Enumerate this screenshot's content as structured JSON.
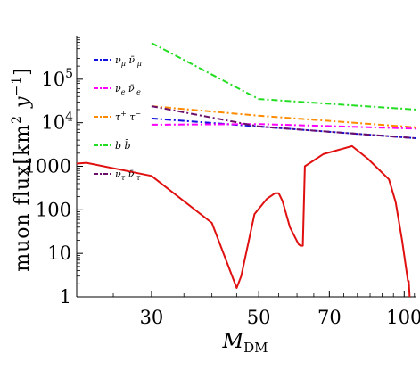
{
  "chart_data": {
    "type": "line",
    "title": "",
    "xlabel": {
      "main": "M",
      "sub": "DM"
    },
    "ylabel": {
      "prefix": "muon flux[km",
      "exp1": "2",
      "mid": " y",
      "exp2": "−1",
      "suffix": "]"
    },
    "x_scale": "log",
    "y_scale": "log",
    "xlim": [
      21,
      106
    ],
    "ylim": [
      1,
      1000000
    ],
    "x_ticks": [
      {
        "value": 30,
        "label": "30"
      },
      {
        "value": 50,
        "label": "50"
      },
      {
        "value": 70,
        "label": "70"
      },
      {
        "value": 100,
        "label": "100"
      }
    ],
    "y_ticks": [
      {
        "value": 1,
        "label": "1"
      },
      {
        "value": 10,
        "label": "10"
      },
      {
        "value": 100,
        "label": "100"
      },
      {
        "value": 1000,
        "label": "1000"
      },
      {
        "value": 10000,
        "label": "10",
        "exp": "4"
      },
      {
        "value": 100000,
        "label": "10",
        "exp": "5"
      }
    ],
    "legend_position": "top-left",
    "series": [
      {
        "name": "ν_μ ν̄_μ",
        "legend_html": "ν<tspan class='sub'>μ</tspan> ν̄<tspan class='sub'>μ</tspan>",
        "color": "#1010e0",
        "dash": "7,3,2,3",
        "x": [
          30,
          50,
          106
        ],
        "y": [
          12500,
          8200,
          4400
        ]
      },
      {
        "name": "ν_e ν̄_e",
        "color": "#ff00ff",
        "dash": "7,3,2,3",
        "x": [
          30,
          50,
          106
        ],
        "y": [
          9000,
          9300,
          7300
        ]
      },
      {
        "name": "τ⁺τ⁻",
        "color": "#ff8c00",
        "dash": "7,3,2,3",
        "x": [
          30,
          50,
          106
        ],
        "y": [
          24000,
          14500,
          7800
        ]
      },
      {
        "name": "b b̄",
        "color": "#22dd22",
        "dash": "7,3,2,3",
        "x": [
          30,
          50,
          106
        ],
        "y": [
          680000,
          35000,
          20000
        ]
      },
      {
        "name": "ν_τ ν̄_τ",
        "color": "#6a0f6a",
        "dash": "7,3,2,3",
        "x": [
          30,
          50,
          106
        ],
        "y": [
          24000,
          8200,
          4400
        ]
      },
      {
        "name": "",
        "color": "#e01010",
        "dash": "",
        "x": [
          21,
          22,
          30,
          40,
          45,
          46,
          49,
          52,
          54,
          55,
          56,
          58,
          60.5,
          61,
          61.7,
          62.3,
          68,
          78,
          84,
          93,
          96,
          99,
          101.8,
          102.2,
          102.8
        ],
        "y": [
          1150,
          1200,
          600,
          50,
          1.6,
          3,
          80,
          180,
          240,
          240,
          160,
          40,
          16,
          15,
          15,
          1000,
          1900,
          2900,
          1500,
          500,
          150,
          20,
          2.3,
          2.3,
          0.7
        ]
      }
    ],
    "legend": [
      {
        "color": "#1010e0",
        "main1": "ν",
        "sub1": "μ",
        "main2": " ν̄",
        "sub2": " μ",
        "sup": ""
      },
      {
        "color": "#ff00ff",
        "main1": "ν",
        "sub1": "e",
        "main2": " ν̄",
        "sub2": " e",
        "sup": ""
      },
      {
        "color": "#ff8c00",
        "main1": "τ",
        "sub1": "",
        "main2": " τ",
        "sub2": "",
        "sup1": "+",
        "sup2": "−"
      },
      {
        "color": "#22dd22",
        "main1": "b",
        "sub1": "",
        "main2": " b̄",
        "sub2": "",
        "sup": ""
      },
      {
        "color": "#6a0f6a",
        "main1": "ν",
        "sub1": "τ",
        "main2": " ν̄",
        "sub2": " τ",
        "sup": ""
      }
    ]
  }
}
